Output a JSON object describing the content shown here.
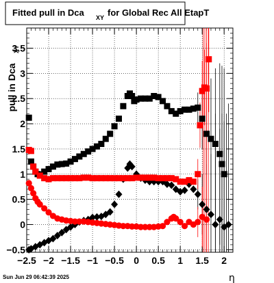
{
  "chart_data": {
    "type": "scatter",
    "title_main": "Fitted pull in Dca",
    "title_sub": "XY",
    "title_rest": "for Global Rec All EtapT",
    "xlabel": "η",
    "ylabel_main": "pull in Dca",
    "ylabel_sub": "XY",
    "xlim": [
      -2.5,
      2.2
    ],
    "ylim": [
      -0.55,
      3.9
    ],
    "x_ticks": [
      -2.5,
      -2,
      -1.5,
      -1,
      -0.5,
      0,
      0.5,
      1,
      1.5,
      2
    ],
    "x_tick_labels": [
      "−2.5",
      "−2",
      "−1.5",
      "−1",
      "−0.5",
      "0",
      "0.5",
      "1",
      "1.5",
      "2"
    ],
    "y_ticks": [
      -0.5,
      0,
      0.5,
      1,
      1.5,
      2,
      2.5,
      3,
      3.5
    ],
    "y_tick_labels": [
      "−0.5",
      "0",
      "0.5",
      "1",
      "1.5",
      "2",
      "2.5",
      "3",
      "3.5"
    ],
    "grid": true,
    "timestamp": "Sun Jun 29 06:42:39 2025",
    "series": [
      {
        "color": "#000000",
        "marker": "square",
        "x": [
          -2.45,
          -2.4,
          -2.35,
          -2.3,
          -2.25,
          -2.2,
          -2.1,
          -2.0,
          -1.9,
          -1.8,
          -1.7,
          -1.6,
          -1.5,
          -1.4,
          -1.3,
          -1.2,
          -1.1,
          -1.0,
          -0.9,
          -0.8,
          -0.7,
          -0.6,
          -0.5,
          -0.4,
          -0.3,
          -0.2,
          -0.15,
          -0.1,
          -0.05,
          0.0,
          0.1,
          0.2,
          0.3,
          0.4,
          0.5,
          0.6,
          0.7,
          0.8,
          0.9,
          1.0,
          1.1,
          1.2,
          1.3,
          1.4,
          1.5,
          1.6,
          1.7,
          1.8,
          1.9,
          1.95,
          2.0
        ],
        "y": [
          2.12,
          1.25,
          1.15,
          1.05,
          1.0,
          0.99,
          1.05,
          1.1,
          1.15,
          1.19,
          1.2,
          1.21,
          1.25,
          1.3,
          1.35,
          1.4,
          1.45,
          1.5,
          1.55,
          1.6,
          1.7,
          1.8,
          1.95,
          2.1,
          2.35,
          2.55,
          2.6,
          2.55,
          2.45,
          2.48,
          2.5,
          2.5,
          2.5,
          2.55,
          2.53,
          2.45,
          2.35,
          2.25,
          2.2,
          2.25,
          2.28,
          2.28,
          2.3,
          2.32,
          2.1,
          1.8,
          1.7,
          1.6,
          1.4,
          1.2,
          1.0
        ]
      },
      {
        "color": "#000000",
        "marker": "diamond",
        "x": [
          -2.45,
          -2.4,
          -2.3,
          -2.2,
          -2.1,
          -2.0,
          -1.9,
          -1.8,
          -1.7,
          -1.6,
          -1.5,
          -1.4,
          -1.3,
          -1.2,
          -1.1,
          -1.0,
          -0.9,
          -0.8,
          -0.7,
          -0.6,
          -0.5,
          -0.4,
          -0.3,
          -0.2,
          -0.15,
          -0.1,
          0.0,
          0.1,
          0.2,
          0.3,
          0.4,
          0.5,
          0.6,
          0.7,
          0.8,
          0.9,
          1.0,
          1.1,
          1.2,
          1.3,
          1.4,
          1.5,
          1.6,
          1.7,
          1.8,
          1.9,
          2.0,
          2.1
        ],
        "y": [
          -0.5,
          -0.48,
          -0.44,
          -0.4,
          -0.36,
          -0.32,
          -0.28,
          -0.22,
          -0.16,
          -0.1,
          -0.05,
          0.0,
          0.05,
          0.08,
          0.1,
          0.14,
          0.15,
          0.16,
          0.2,
          0.25,
          0.4,
          0.6,
          0.9,
          1.12,
          1.2,
          1.15,
          1.0,
          0.92,
          0.88,
          0.85,
          0.85,
          0.85,
          0.85,
          0.8,
          0.78,
          0.7,
          0.65,
          0.68,
          0.8,
          0.7,
          0.6,
          0.4,
          0.3,
          0.2,
          0.0,
          0.1,
          -0.05,
          0.0
        ]
      },
      {
        "color": "#ff0000",
        "marker": "square",
        "x": [
          -2.45,
          -2.4,
          -2.35,
          -2.3,
          -2.2,
          -2.1,
          -2.0,
          -1.9,
          -1.8,
          -1.7,
          -1.6,
          -1.5,
          -1.4,
          -1.3,
          -1.2,
          -1.1,
          -1.0,
          -0.9,
          -0.8,
          -0.7,
          -0.6,
          -0.5,
          -0.4,
          -0.3,
          -0.2,
          -0.1,
          0.0,
          0.1,
          0.2,
          0.3,
          0.4,
          0.5,
          0.6,
          0.7,
          0.8,
          0.9,
          1.0,
          1.1,
          1.2,
          1.3,
          1.4,
          1.45,
          1.5,
          1.55,
          1.6,
          1.65
        ],
        "y": [
          1.48,
          1.46,
          1.15,
          1.05,
          0.97,
          0.92,
          0.9,
          0.92,
          0.92,
          0.92,
          0.92,
          0.92,
          0.92,
          0.92,
          0.93,
          0.93,
          0.92,
          0.92,
          0.92,
          0.92,
          0.92,
          0.92,
          0.92,
          0.92,
          0.92,
          0.92,
          0.93,
          0.93,
          0.93,
          0.93,
          0.93,
          0.92,
          0.92,
          0.92,
          0.92,
          0.9,
          0.85,
          0.85,
          0.88,
          0.85,
          1.0,
          1.97,
          2.65,
          2.72,
          2.7,
          3.28
        ]
      },
      {
        "color": "#ff0000",
        "marker": "circle",
        "x": [
          -2.45,
          -2.4,
          -2.35,
          -2.3,
          -2.25,
          -2.2,
          -2.1,
          -2.0,
          -1.9,
          -1.8,
          -1.7,
          -1.6,
          -1.5,
          -1.4,
          -1.3,
          -1.2,
          -1.1,
          -1.0,
          -0.9,
          -0.8,
          -0.7,
          -0.6,
          -0.5,
          -0.4,
          -0.3,
          -0.2,
          -0.1,
          0.0,
          0.1,
          0.2,
          0.3,
          0.4,
          0.5,
          0.6,
          0.7,
          0.8,
          0.85,
          0.9,
          1.0,
          1.1,
          1.2,
          1.3,
          1.4,
          1.5,
          1.6
        ],
        "y": [
          0.82,
          0.72,
          0.62,
          0.52,
          0.45,
          0.4,
          0.32,
          0.24,
          0.17,
          0.12,
          0.1,
          0.08,
          0.07,
          0.06,
          0.06,
          0.06,
          0.05,
          0.04,
          0.03,
          0.02,
          0.01,
          0.0,
          -0.01,
          -0.02,
          -0.03,
          -0.03,
          -0.04,
          -0.04,
          -0.05,
          -0.05,
          -0.05,
          -0.05,
          -0.04,
          -0.03,
          0.05,
          0.12,
          0.15,
          0.12,
          0.05,
          -0.03,
          0.05,
          0.0,
          0.05,
          0.15,
          0.1
        ]
      }
    ]
  }
}
